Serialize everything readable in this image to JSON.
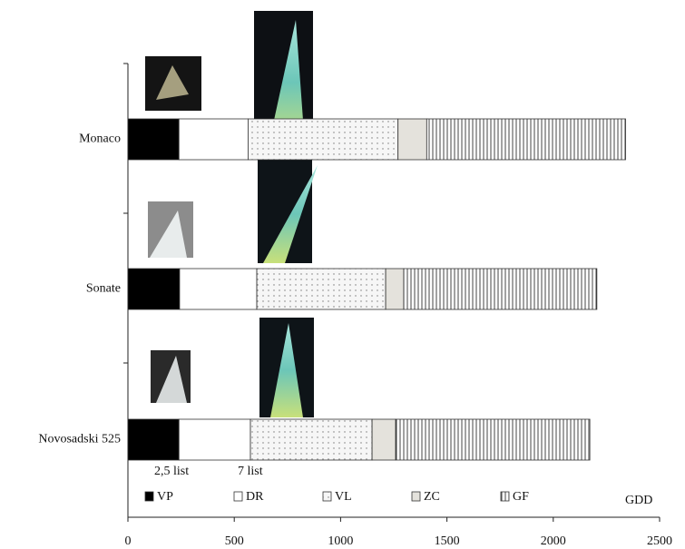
{
  "chart_data": {
    "type": "bar",
    "orientation": "horizontal",
    "stacked": true,
    "categories": [
      "Monaco",
      "Sonate",
      "Novosadski 525"
    ],
    "series": [
      {
        "name": "VP",
        "color": "#000000",
        "values": [
          240,
          243,
          240
        ]
      },
      {
        "name": "DR",
        "color": "#ffffff",
        "values": [
          325,
          363,
          336
        ]
      },
      {
        "name": "VL",
        "color": "#f4f4f4",
        "values": [
          705,
          606,
          572
        ]
      },
      {
        "name": "ZC",
        "color": "#e4e2dc",
        "values": [
          135,
          85,
          111
        ]
      },
      {
        "name": "GF",
        "color": "#ffffff",
        "values": [
          935,
          908,
          913
        ]
      }
    ],
    "xlim": [
      0,
      2500
    ],
    "xticks": [
      0,
      500,
      1000,
      1500,
      2000,
      2500
    ],
    "x_label": "GDD",
    "annotations": [
      "2,5 list",
      "7 list"
    ]
  }
}
